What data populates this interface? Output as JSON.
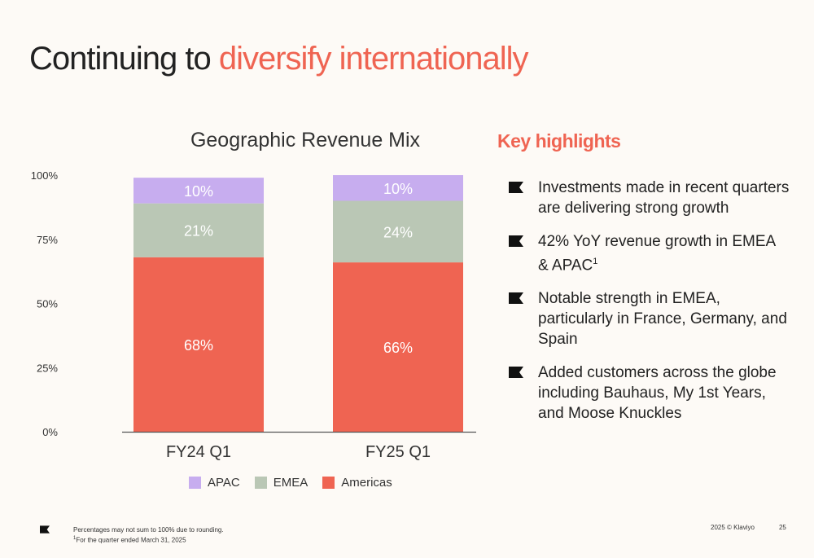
{
  "slide": {
    "title_plain": "Continuing to ",
    "title_accent": "diversify internationally",
    "accent_color": "#ef6452"
  },
  "chart_data": {
    "type": "bar",
    "stacked": true,
    "title": "Geographic Revenue Mix",
    "categories": [
      "FY24 Q1",
      "FY25 Q1"
    ],
    "y_ticks": [
      "0%",
      "25%",
      "50%",
      "75%",
      "100%"
    ],
    "ylim": [
      0,
      100
    ],
    "grid": false,
    "legend_position": "bottom",
    "series": [
      {
        "name": "Americas",
        "values": [
          68,
          66
        ],
        "labels": [
          "68%",
          "66%"
        ],
        "color": "#ef6452"
      },
      {
        "name": "EMEA",
        "values": [
          21,
          24
        ],
        "labels": [
          "21%",
          "24%"
        ],
        "color": "#bac7b5"
      },
      {
        "name": "APAC",
        "values": [
          10,
          10
        ],
        "labels": [
          "10%",
          "10%"
        ],
        "color": "#c7adef"
      }
    ],
    "legend": [
      "APAC",
      "EMEA",
      "Americas"
    ]
  },
  "highlights": {
    "title": "Key highlights",
    "items": [
      {
        "text": "Investments made in recent quarters are delivering strong growth",
        "sup": ""
      },
      {
        "text": "42% YoY revenue growth in EMEA & APAC",
        "sup": "1"
      },
      {
        "text": "Notable strength in EMEA, particularly in France, Germany, and Spain",
        "sup": ""
      },
      {
        "text": "Added customers across the globe including Bauhaus, My 1st Years, and Moose Knuckles",
        "sup": ""
      }
    ],
    "bullet_icon": "flag-icon"
  },
  "footer": {
    "note1": "Percentages may not sum to 100% due to rounding.",
    "note2_sup": "1",
    "note2": "For the quarter ended March 31, 2025",
    "copyright": "2025 © Klaviyo",
    "page_number": "25",
    "logo_icon": "flag-icon"
  }
}
